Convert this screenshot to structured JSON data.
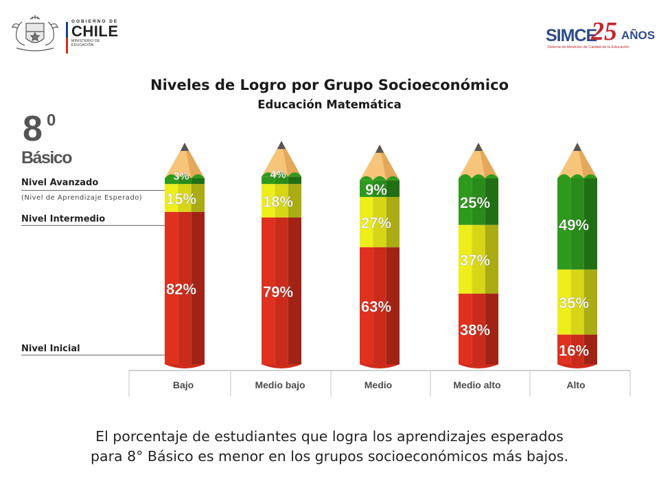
{
  "header": {
    "gov_logo": {
      "line1": "GOBIERNO DE",
      "line2": "CHILE",
      "line3": "MINISTERIO DE EDUCACIÓN",
      "flag_colors": [
        "#1f3f8f",
        "#d52b1e"
      ]
    },
    "simce_logo": {
      "word": "SIMCE",
      "number": "25",
      "suffix": "AÑOS",
      "tagline": "Sistema de Medición de Calidad de la Educación",
      "blue": "#2d4a8a",
      "red": "#c0272d"
    }
  },
  "grade": {
    "number": "8",
    "sup": "0",
    "word": "Básico"
  },
  "level_labels": {
    "advanced": "Nivel Avanzado",
    "advanced_note": "(Nivel de Aprendizaje Esperado)",
    "intermediate": "Nivel Intermedio",
    "initial": "Nivel Inicial"
  },
  "chart_data": {
    "type": "bar",
    "stacked": true,
    "title": "Niveles de Logro por Grupo Socioeconómico",
    "subtitle": "Educación Matemática",
    "categories": [
      "Bajo",
      "Medio bajo",
      "Medio",
      "Medio alto",
      "Alto"
    ],
    "series": [
      {
        "name": "Nivel Inicial",
        "color": "#e0301e",
        "values": [
          82,
          79,
          63,
          38,
          16
        ],
        "labels": [
          "82%",
          "79%",
          "63%",
          "38%",
          "16%"
        ]
      },
      {
        "name": "Nivel Intermedio",
        "color": "#eeee1a",
        "values": [
          15,
          18,
          27,
          37,
          35
        ],
        "labels": [
          "15%",
          "18%",
          "27%",
          "37%",
          "35%"
        ]
      },
      {
        "name": "Nivel Avanzado",
        "color": "#2e9a1c",
        "values": [
          3,
          4,
          9,
          25,
          49
        ],
        "labels": [
          "3%",
          "4%",
          "9%",
          "25%",
          "49%"
        ]
      }
    ],
    "ylim": [
      0,
      100
    ],
    "legend": "left"
  },
  "footer": {
    "line1": "El porcentaje de estudiantes que logra los aprendizajes esperados",
    "line2": "para 8° Básico es menor en los grupos socioeconómicos más bajos."
  }
}
